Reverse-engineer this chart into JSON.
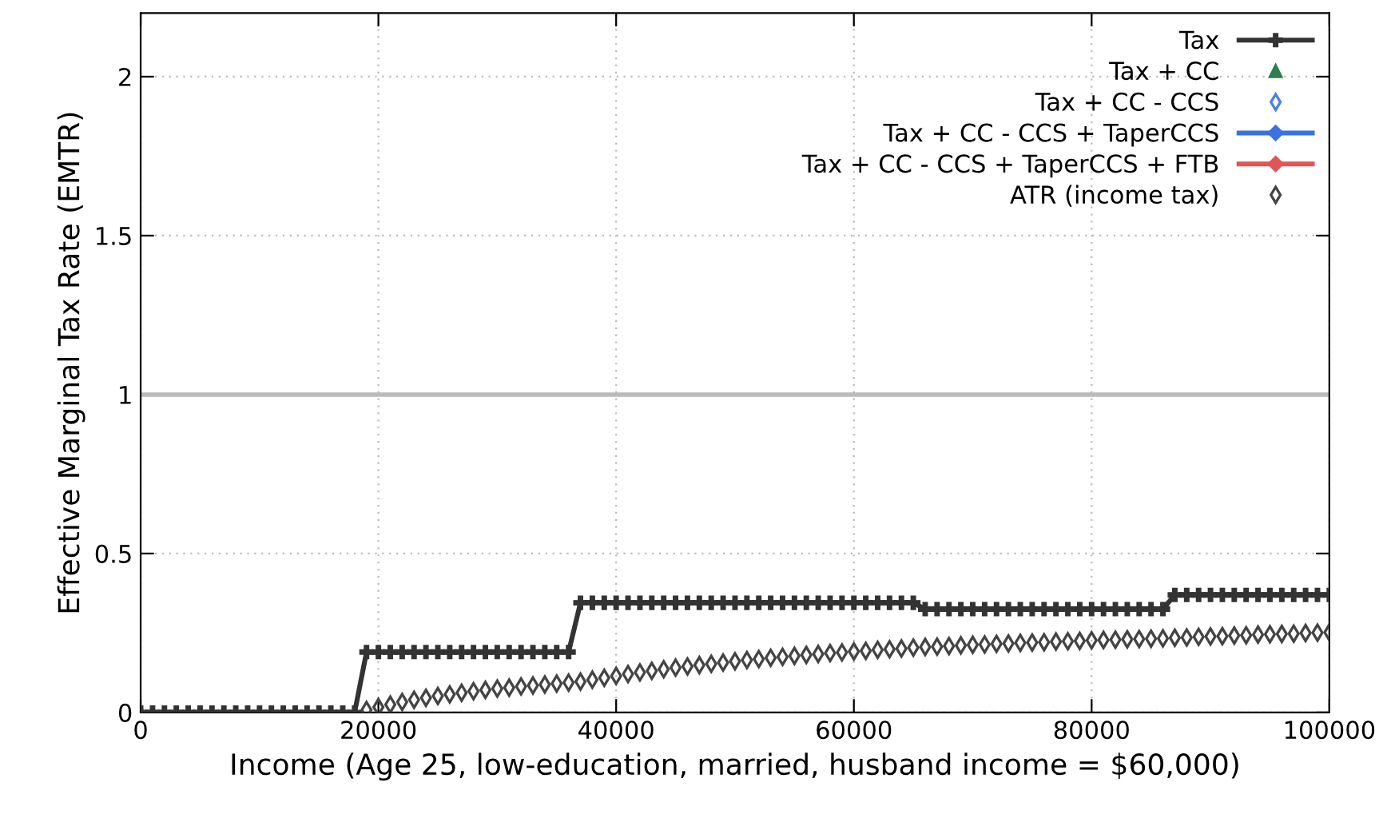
{
  "chart_data": {
    "type": "line",
    "xlabel": "Income (Age 25, low-education, married, husband income = $60,000)",
    "ylabel": "Effective Marginal Tax Rate (EMTR)",
    "x": [
      0,
      1000,
      2000,
      3000,
      4000,
      5000,
      6000,
      7000,
      8000,
      9000,
      10000,
      11000,
      12000,
      13000,
      14000,
      15000,
      16000,
      17000,
      18000,
      19000,
      20000,
      21000,
      22000,
      23000,
      24000,
      25000,
      26000,
      27000,
      28000,
      29000,
      30000,
      31000,
      32000,
      33000,
      34000,
      35000,
      36000,
      37000,
      38000,
      39000,
      40000,
      41000,
      42000,
      43000,
      44000,
      45000,
      46000,
      47000,
      48000,
      49000,
      50000,
      51000,
      52000,
      53000,
      54000,
      55000,
      56000,
      57000,
      58000,
      59000,
      60000,
      61000,
      62000,
      63000,
      64000,
      65000,
      66000,
      67000,
      68000,
      69000,
      70000,
      71000,
      72000,
      73000,
      74000,
      75000,
      76000,
      77000,
      78000,
      79000,
      80000,
      81000,
      82000,
      83000,
      84000,
      85000,
      86000,
      87000,
      88000,
      89000,
      90000,
      91000,
      92000,
      93000,
      94000,
      95000,
      96000,
      97000,
      98000,
      99000,
      100000
    ],
    "series": [
      {
        "name": "Tax",
        "color": "#333333",
        "marker": "cross",
        "values": [
          0,
          0,
          0,
          0,
          0,
          0,
          0,
          0,
          0,
          0,
          0,
          0,
          0,
          0,
          0,
          0,
          0,
          0,
          0,
          0.19,
          0.19,
          0.19,
          0.19,
          0.19,
          0.19,
          0.19,
          0.19,
          0.19,
          0.19,
          0.19,
          0.19,
          0.19,
          0.19,
          0.19,
          0.19,
          0.19,
          0.19,
          0.345,
          0.345,
          0.345,
          0.345,
          0.345,
          0.345,
          0.345,
          0.345,
          0.345,
          0.345,
          0.345,
          0.345,
          0.345,
          0.345,
          0.345,
          0.345,
          0.345,
          0.345,
          0.345,
          0.345,
          0.345,
          0.345,
          0.345,
          0.345,
          0.345,
          0.345,
          0.345,
          0.345,
          0.345,
          0.325,
          0.325,
          0.325,
          0.325,
          0.325,
          0.325,
          0.325,
          0.325,
          0.325,
          0.325,
          0.325,
          0.325,
          0.325,
          0.325,
          0.325,
          0.325,
          0.325,
          0.325,
          0.325,
          0.325,
          0.325,
          0.37,
          0.37,
          0.37,
          0.37,
          0.37,
          0.37,
          0.37,
          0.37,
          0.37,
          0.37,
          0.37,
          0.37,
          0.37,
          0.37
        ]
      },
      {
        "name": "Tax + CC",
        "type": "scatter",
        "color": "#2e7d4f",
        "marker": "triangle",
        "values": [
          null,
          null,
          null,
          null,
          null,
          null,
          null,
          null,
          null,
          null,
          null,
          null,
          null,
          null,
          null,
          null,
          null,
          null,
          null,
          null,
          null,
          null,
          null,
          null,
          null,
          null,
          null,
          null,
          null,
          null,
          null,
          null,
          null,
          null,
          null,
          null,
          null,
          null,
          null,
          null,
          null,
          null,
          null,
          null,
          null,
          null,
          null,
          null,
          null,
          null,
          null,
          null,
          null,
          null,
          null,
          null,
          null,
          null,
          null,
          null,
          null,
          null,
          null,
          null,
          null,
          null,
          null,
          null,
          null,
          null,
          null,
          null,
          null,
          null,
          null,
          null,
          null,
          null,
          null,
          null,
          null,
          null,
          null,
          null,
          null,
          null,
          null,
          null,
          null,
          null,
          null,
          null,
          null,
          null,
          null,
          null,
          null,
          null,
          null,
          null,
          null
        ]
      },
      {
        "name": "Tax + CC - CCS",
        "type": "scatter",
        "color": "#4a80e8",
        "marker": "diamond",
        "values": [
          null,
          null,
          null,
          null,
          null,
          null,
          null,
          null,
          null,
          null,
          null,
          null,
          null,
          null,
          null,
          null,
          null,
          null,
          null,
          null,
          null,
          null,
          null,
          null,
          null,
          null,
          null,
          null,
          null,
          null,
          null,
          null,
          null,
          null,
          null,
          null,
          null,
          null,
          null,
          null,
          null,
          null,
          null,
          null,
          null,
          null,
          null,
          null,
          null,
          null,
          null,
          null,
          null,
          null,
          null,
          null,
          null,
          null,
          null,
          null,
          null,
          null,
          null,
          null,
          null,
          null,
          null,
          null,
          null,
          null,
          null,
          null,
          null,
          null,
          null,
          null,
          null,
          null,
          null,
          null,
          null,
          null,
          null,
          null,
          null,
          null,
          null,
          null,
          null,
          null,
          null,
          null,
          null,
          null,
          null,
          null,
          null,
          null,
          null,
          null,
          null
        ]
      },
      {
        "name": "Tax + CC - CCS + TaperCCS",
        "color": "#3a72e0",
        "marker": "diamond",
        "values": [
          null,
          null,
          null,
          null,
          null,
          null,
          null,
          null,
          null,
          null,
          null,
          null,
          null,
          null,
          null,
          null,
          null,
          null,
          null,
          null,
          null,
          null,
          null,
          null,
          null,
          null,
          null,
          null,
          null,
          null,
          null,
          null,
          null,
          null,
          null,
          null,
          null,
          null,
          null,
          null,
          null,
          null,
          null,
          null,
          null,
          null,
          null,
          null,
          null,
          null,
          null,
          null,
          null,
          null,
          null,
          null,
          null,
          null,
          null,
          null,
          null,
          null,
          null,
          null,
          null,
          null,
          null,
          null,
          null,
          null,
          null,
          null,
          null,
          null,
          null,
          null,
          null,
          null,
          null,
          null,
          null,
          null,
          null,
          null,
          null,
          null,
          null,
          null,
          null,
          null,
          null,
          null,
          null,
          null,
          null,
          null,
          null,
          null,
          null,
          null,
          null
        ]
      },
      {
        "name": "Tax + CC - CCS + TaperCCS + FTB",
        "color": "#e05555",
        "marker": "diamond",
        "values": [
          null,
          null,
          null,
          null,
          null,
          null,
          null,
          null,
          null,
          null,
          null,
          null,
          null,
          null,
          null,
          null,
          null,
          null,
          null,
          null,
          null,
          null,
          null,
          null,
          null,
          null,
          null,
          null,
          null,
          null,
          null,
          null,
          null,
          null,
          null,
          null,
          null,
          null,
          null,
          null,
          null,
          null,
          null,
          null,
          null,
          null,
          null,
          null,
          null,
          null,
          null,
          null,
          null,
          null,
          null,
          null,
          null,
          null,
          null,
          null,
          null,
          null,
          null,
          null,
          null,
          null,
          null,
          null,
          null,
          null,
          null,
          null,
          null,
          null,
          null,
          null,
          null,
          null,
          null,
          null,
          null,
          null,
          null,
          null,
          null,
          null,
          null,
          null,
          null,
          null,
          null,
          null,
          null,
          null,
          null,
          null,
          null,
          null,
          null,
          null,
          null
        ]
      },
      {
        "name": "ATR (income tax)",
        "type": "scatter",
        "color": "#444444",
        "marker": "diamond",
        "values": [
          null,
          null,
          null,
          null,
          null,
          null,
          null,
          null,
          null,
          null,
          null,
          null,
          null,
          null,
          null,
          null,
          null,
          null,
          null,
          0.008,
          0.017,
          0.025,
          0.033,
          0.04,
          0.046,
          0.052,
          0.057,
          0.062,
          0.067,
          0.071,
          0.075,
          0.078,
          0.082,
          0.085,
          0.088,
          0.091,
          0.094,
          0.097,
          0.103,
          0.109,
          0.115,
          0.121,
          0.126,
          0.131,
          0.136,
          0.141,
          0.145,
          0.149,
          0.153,
          0.157,
          0.161,
          0.165,
          0.168,
          0.172,
          0.175,
          0.178,
          0.181,
          0.184,
          0.187,
          0.189,
          0.192,
          0.194,
          0.197,
          0.199,
          0.201,
          0.204,
          0.206,
          0.207,
          0.209,
          0.211,
          0.213,
          0.214,
          0.216,
          0.217,
          0.219,
          0.22,
          0.221,
          0.223,
          0.224,
          0.225,
          0.227,
          0.228,
          0.229,
          0.23,
          0.231,
          0.232,
          0.233,
          0.235,
          0.236,
          0.238,
          0.239,
          0.24,
          0.242,
          0.243,
          0.245,
          0.246,
          0.247,
          0.248,
          0.25,
          0.251,
          0.252
        ]
      }
    ],
    "xlim": [
      0,
      100000
    ],
    "xticks": [
      0,
      20000,
      40000,
      60000,
      80000,
      100000
    ],
    "ylim": [
      0,
      2.2
    ],
    "yticks": [
      0,
      0.5,
      1,
      1.5,
      2
    ],
    "ref_lines": [
      {
        "axis": "y",
        "value": 1,
        "color": "#bbbbbb"
      }
    ],
    "grid": true,
    "legend": "top right"
  }
}
